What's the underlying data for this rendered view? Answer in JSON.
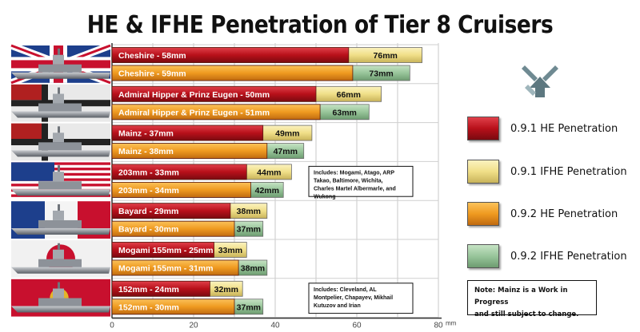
{
  "title": "HE & IFHE Penetration of Tier 8 Cruisers",
  "colors": {
    "he_old": "#b8101a",
    "ifhe_old": "#f0df88",
    "he_new": "#ef9a20",
    "ifhe_new": "#98c59a"
  },
  "chart_data": {
    "type": "bar",
    "orientation": "horizontal",
    "x_unit": "mm",
    "xlim": [
      0,
      80
    ],
    "x_ticks": [
      0,
      20,
      40,
      60,
      80
    ],
    "x_tick_labels": [
      "0",
      "20",
      "40",
      "60",
      "80"
    ],
    "grid": true,
    "groups": [
      {
        "ship": "Cheshire",
        "flag": "uk",
        "rows": [
          {
            "he_label": "Cheshire - 58mm",
            "he": 58,
            "ifhe_label": "76mm",
            "ifhe": 76,
            "version": "0.9.1"
          },
          {
            "he_label": "Cheshire - 59mm",
            "he": 59,
            "ifhe_label": "73mm",
            "ifhe": 73,
            "version": "0.9.2"
          }
        ]
      },
      {
        "ship": "Admiral Hipper & Prinz Eugen",
        "flag": "germany",
        "rows": [
          {
            "he_label": "Admiral Hipper & Prinz Eugen - 50mm",
            "he": 50,
            "ifhe_label": "66mm",
            "ifhe": 66,
            "version": "0.9.1"
          },
          {
            "he_label": "Admiral Hipper & Prinz Eugen - 51mm",
            "he": 51,
            "ifhe_label": "63mm",
            "ifhe": 63,
            "version": "0.9.2"
          }
        ]
      },
      {
        "ship": "Mainz",
        "flag": "germany",
        "rows": [
          {
            "he_label": "Mainz - 37mm",
            "he": 37,
            "ifhe_label": "49mm",
            "ifhe": 49,
            "version": "0.9.1"
          },
          {
            "he_label": "Mainz - 38mm",
            "he": 38,
            "ifhe_label": "47mm",
            "ifhe": 47,
            "version": "0.9.2"
          }
        ]
      },
      {
        "ship": "203mm",
        "flag": "usa",
        "rows": [
          {
            "he_label": "203mm - 33mm",
            "he": 33,
            "ifhe_label": "44mm",
            "ifhe": 44,
            "version": "0.9.1"
          },
          {
            "he_label": "203mm - 34mm",
            "he": 34,
            "ifhe_label": "42mm",
            "ifhe": 42,
            "version": "0.9.2"
          }
        ],
        "note": "Includes:  Mogami, Atago, ARP Takao, Baltimore, Wichita, Charles Martel Albermarle, and Wukong"
      },
      {
        "ship": "Bayard",
        "flag": "france",
        "rows": [
          {
            "he_label": "Bayard - 29mm",
            "he": 29,
            "ifhe_label": "38mm",
            "ifhe": 38,
            "version": "0.9.1"
          },
          {
            "he_label": "Bayard - 30mm",
            "he": 30,
            "ifhe_label": "37mm",
            "ifhe": 37,
            "version": "0.9.2"
          }
        ]
      },
      {
        "ship": "Mogami 155mm",
        "flag": "japan",
        "rows": [
          {
            "he_label": "Mogami 155mm - 25mm",
            "he": 25,
            "ifhe_label": "33mm",
            "ifhe": 33,
            "version": "0.9.1"
          },
          {
            "he_label": "Mogami 155mm - 31mm",
            "he": 31,
            "ifhe_label": "38mm",
            "ifhe": 38,
            "version": "0.9.2"
          }
        ]
      },
      {
        "ship": "152mm",
        "flag": "china",
        "rows": [
          {
            "he_label": "152mm - 24mm",
            "he": 24,
            "ifhe_label": "32mm",
            "ifhe": 32,
            "version": "0.9.1"
          },
          {
            "he_label": "152mm - 30mm",
            "he": 30,
            "ifhe_label": "37mm",
            "ifhe": 37,
            "version": "0.9.2"
          }
        ],
        "note": "Includes:  Cleveland, AL Montpelier, Chapayev, Mikhail Kutuzov and Irian"
      }
    ],
    "legend": [
      {
        "label": "0.9.1 HE Penetration",
        "color": "#b8101a"
      },
      {
        "label": "0.9.1 IFHE Penetration",
        "color": "#f0df88"
      },
      {
        "label": "0.9.2 HE Penetration",
        "color": "#ef9a20"
      },
      {
        "label": "0.9.2 IFHE Penetration",
        "color": "#98c59a"
      }
    ],
    "legend_position": "right"
  },
  "note": {
    "line1": "Note:  Mainz is a Work in Progress",
    "line2": "and still subject to change."
  }
}
